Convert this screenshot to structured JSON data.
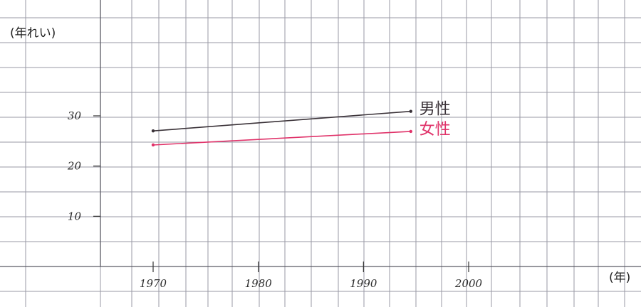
{
  "chart_data": {
    "type": "line",
    "ylabel": "(年れい)",
    "xlabel": "(年)",
    "xlim": [
      1961.5,
      2011
    ],
    "ylim": [
      0,
      52
    ],
    "x_ticks": [
      1970,
      1980,
      1990,
      2000
    ],
    "x_tick_labels": [
      "1970",
      "1980",
      "1990",
      "2000"
    ],
    "y_ticks": [
      10,
      20,
      30
    ],
    "y_tick_labels": [
      "10",
      "20",
      "30"
    ],
    "grid": true,
    "series": [
      {
        "name": "男性",
        "color": "#3a3238",
        "x": [
          1970,
          1994.5
        ],
        "values": [
          27.0,
          30.9
        ]
      },
      {
        "name": "女性",
        "color": "#e0336a",
        "x": [
          1970,
          1994.5
        ],
        "values": [
          24.2,
          26.9
        ]
      }
    ]
  }
}
